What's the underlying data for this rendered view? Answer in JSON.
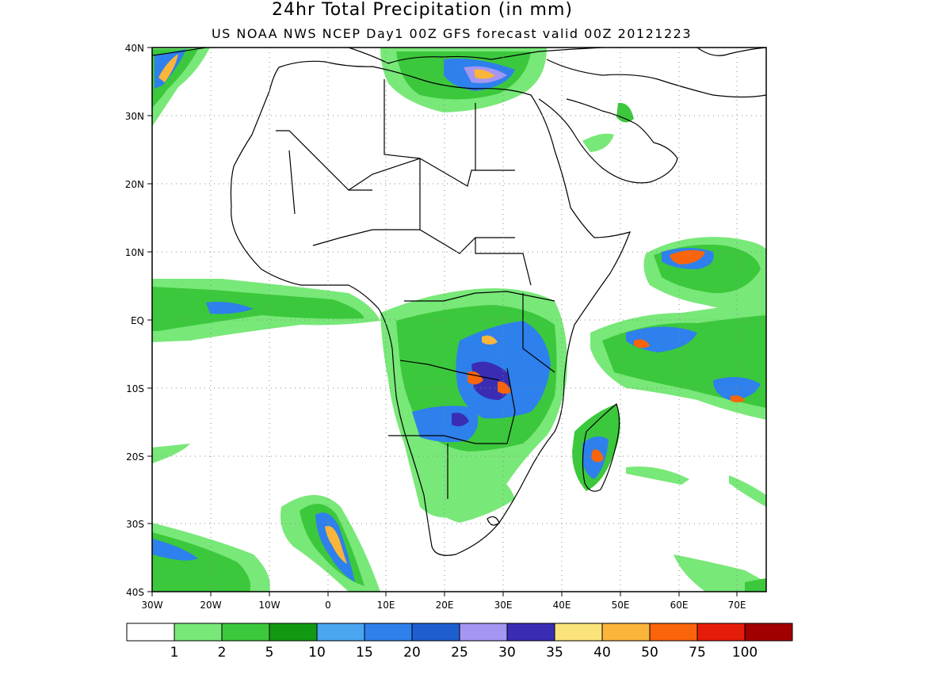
{
  "title": "24hr Total Precipitation (in mm)",
  "subtitle": "US NOAA NWS NCEP Day1 00Z GFS forecast valid 00Z 20121223",
  "map": {
    "region": "Africa",
    "lon_range": [
      -30,
      75
    ],
    "lat_range": [
      -40,
      40
    ],
    "lon_ticks": [
      "30W",
      "20W",
      "10W",
      "0",
      "10E",
      "20E",
      "30E",
      "40E",
      "50E",
      "60E",
      "70E"
    ],
    "lat_ticks": [
      "40N",
      "30N",
      "20N",
      "10N",
      "EQ",
      "10S",
      "20S",
      "30S",
      "40S"
    ],
    "gridlines": true
  },
  "colorbar": {
    "colors": [
      "#ffffff",
      "#78e878",
      "#3cc83c",
      "#119a11",
      "#4aa6f0",
      "#2e80ec",
      "#1e5ed0",
      "#a496f2",
      "#3a2db4",
      "#fae47a",
      "#fab53a",
      "#fa640a",
      "#e61c0a",
      "#a00000"
    ],
    "labels": [
      "1",
      "2",
      "5",
      "10",
      "15",
      "20",
      "25",
      "30",
      "35",
      "40",
      "50",
      "75",
      "100"
    ]
  }
}
